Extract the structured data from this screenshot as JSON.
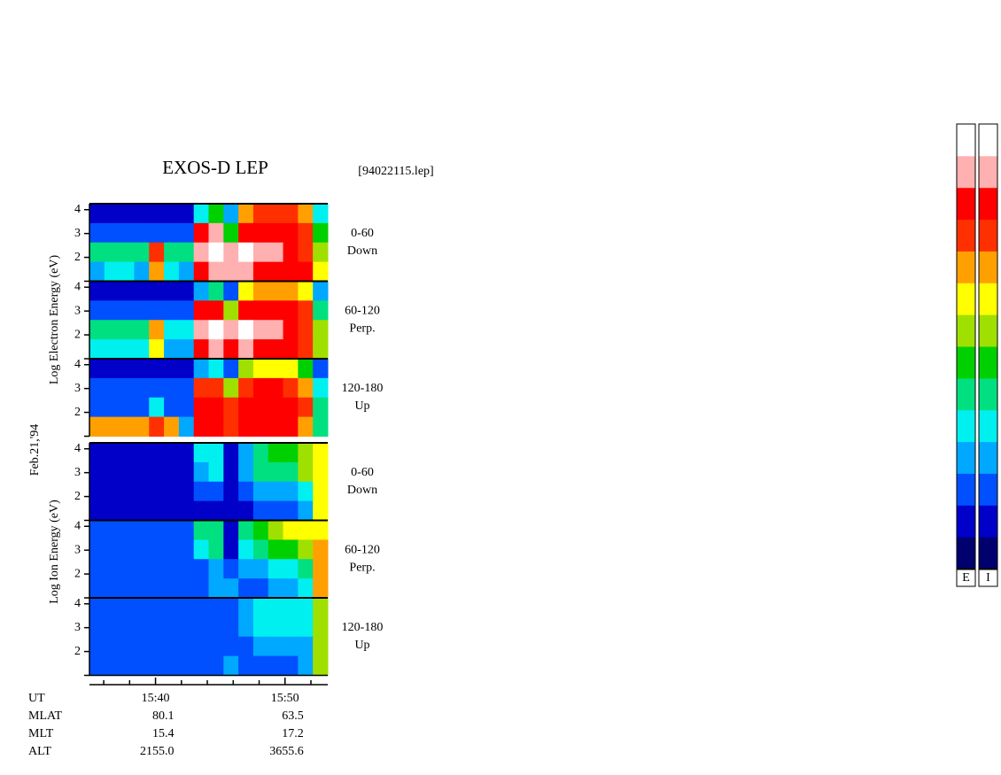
{
  "chart_data": {
    "type": "spectrogram",
    "title": "EXOS-D LEP",
    "subtitle": "[94022115.lep]",
    "date": "Feb.21,'94",
    "groups": [
      {
        "ylabel": "Log Electron Energy (eV)"
      },
      {
        "ylabel": "Log Ion Energy (eV)"
      }
    ],
    "ylim": [
      1,
      4.25
    ],
    "yticks": [
      2,
      3,
      4
    ],
    "xlim": [
      34.9,
      53.3
    ],
    "xticks": [
      {
        "value": 40,
        "label": "15:40"
      },
      {
        "value": 50,
        "label": "15:50"
      }
    ],
    "xminorticks": [
      36,
      38,
      42,
      44,
      46,
      48,
      52
    ],
    "xlabel": "UT",
    "orbit": [
      {
        "label": "MLAT",
        "values": [
          "80.1",
          "63.5"
        ]
      },
      {
        "label": "MLT",
        "values": [
          "15.4",
          "17.2"
        ]
      },
      {
        "label": "ALT",
        "values": [
          "2155.0",
          "3655.6"
        ]
      }
    ],
    "colormap": [
      "#00006e",
      "#0000c8",
      "#0050ff",
      "#00a8ff",
      "#00f0f0",
      "#00e080",
      "#00d000",
      "#a0e000",
      "#ffff00",
      "#ffa000",
      "#ff3000",
      "#ff0000",
      "#ffb0b0",
      "#ffffff"
    ],
    "colorbar_labels": [
      "E",
      "I"
    ],
    "panels": [
      {
        "group": 0,
        "labels": [
          "0-60",
          "Down"
        ],
        "values": [
          [
            1,
            1,
            1,
            1,
            1,
            1,
            1,
            4,
            6,
            3,
            9,
            10,
            10,
            10,
            9,
            4
          ],
          [
            2,
            2,
            2,
            2,
            2,
            2,
            2,
            11,
            12,
            6,
            11,
            11,
            11,
            11,
            10,
            6
          ],
          [
            5,
            5,
            5,
            5,
            10,
            5,
            5,
            12,
            13,
            12,
            13,
            12,
            12,
            11,
            10,
            7
          ],
          [
            3,
            4,
            4,
            3,
            9,
            4,
            3,
            11,
            12,
            12,
            12,
            11,
            11,
            11,
            11,
            8
          ]
        ]
      },
      {
        "group": 0,
        "labels": [
          "60-120",
          "Perp."
        ],
        "values": [
          [
            1,
            1,
            1,
            1,
            1,
            1,
            1,
            3,
            5,
            2,
            8,
            9,
            9,
            9,
            8,
            3
          ],
          [
            2,
            2,
            2,
            2,
            2,
            2,
            2,
            11,
            11,
            7,
            11,
            11,
            11,
            11,
            10,
            5
          ],
          [
            5,
            5,
            5,
            5,
            9,
            4,
            4,
            12,
            13,
            12,
            13,
            12,
            12,
            11,
            10,
            7
          ],
          [
            4,
            4,
            4,
            4,
            8,
            3,
            3,
            11,
            12,
            11,
            12,
            11,
            11,
            11,
            10,
            7
          ]
        ]
      },
      {
        "group": 0,
        "labels": [
          "120-180",
          "Up"
        ],
        "values": [
          [
            1,
            1,
            1,
            1,
            1,
            1,
            1,
            3,
            4,
            2,
            7,
            8,
            8,
            8,
            6,
            2
          ],
          [
            2,
            2,
            2,
            2,
            2,
            2,
            2,
            10,
            10,
            7,
            10,
            11,
            11,
            10,
            9,
            4
          ],
          [
            2,
            2,
            2,
            2,
            4,
            2,
            2,
            11,
            11,
            10,
            11,
            11,
            11,
            11,
            10,
            5
          ],
          [
            9,
            9,
            9,
            9,
            10,
            9,
            3,
            11,
            11,
            10,
            11,
            11,
            11,
            11,
            9,
            5
          ]
        ]
      },
      {
        "group": 1,
        "labels": [
          "0-60",
          "Down"
        ],
        "values": [
          [
            1,
            1,
            1,
            1,
            1,
            1,
            1,
            4,
            4,
            1,
            3,
            5,
            6,
            6,
            7,
            8
          ],
          [
            1,
            1,
            1,
            1,
            1,
            1,
            1,
            3,
            4,
            1,
            3,
            5,
            5,
            5,
            7,
            8
          ],
          [
            1,
            1,
            1,
            1,
            1,
            1,
            1,
            2,
            2,
            1,
            2,
            3,
            3,
            3,
            4,
            8
          ],
          [
            1,
            1,
            1,
            1,
            1,
            1,
            1,
            1,
            1,
            1,
            1,
            2,
            2,
            2,
            3,
            8
          ]
        ]
      },
      {
        "group": 1,
        "labels": [
          "60-120",
          "Perp."
        ],
        "values": [
          [
            2,
            2,
            2,
            2,
            2,
            2,
            2,
            5,
            5,
            1,
            5,
            6,
            7,
            8,
            8,
            8
          ],
          [
            2,
            2,
            2,
            2,
            2,
            2,
            2,
            4,
            5,
            1,
            4,
            5,
            6,
            6,
            7,
            9
          ],
          [
            2,
            2,
            2,
            2,
            2,
            2,
            2,
            2,
            3,
            2,
            3,
            3,
            4,
            4,
            5,
            9
          ],
          [
            2,
            2,
            2,
            2,
            2,
            2,
            2,
            2,
            3,
            3,
            2,
            2,
            3,
            3,
            4,
            9
          ]
        ]
      },
      {
        "group": 1,
        "labels": [
          "120-180",
          "Up"
        ],
        "values": [
          [
            2,
            2,
            2,
            2,
            2,
            2,
            2,
            2,
            2,
            2,
            3,
            4,
            4,
            4,
            4,
            7
          ],
          [
            2,
            2,
            2,
            2,
            2,
            2,
            2,
            2,
            2,
            2,
            3,
            4,
            4,
            4,
            4,
            7
          ],
          [
            2,
            2,
            2,
            2,
            2,
            2,
            2,
            2,
            2,
            2,
            2,
            3,
            3,
            3,
            3,
            7
          ],
          [
            2,
            2,
            2,
            2,
            2,
            2,
            2,
            2,
            2,
            3,
            2,
            2,
            2,
            2,
            3,
            7
          ]
        ]
      }
    ]
  }
}
